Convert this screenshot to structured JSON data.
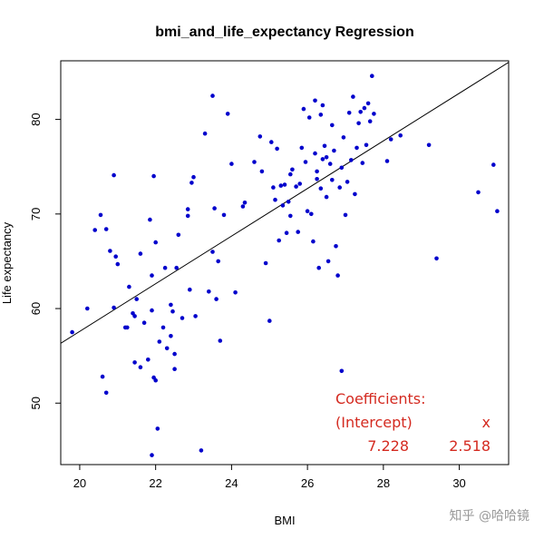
{
  "chart_data": {
    "type": "scatter",
    "title": "bmi_and_life_expectancy Regression",
    "xlabel": "BMI",
    "ylabel": "Life expectancy",
    "xlim": [
      19.5,
      31.3
    ],
    "ylim": [
      43.5,
      86.2
    ],
    "xticks": [
      20,
      22,
      24,
      26,
      28,
      30
    ],
    "yticks": [
      50,
      60,
      70,
      80
    ],
    "grid": false,
    "point_color": "#0000cc",
    "line_color": "#000000",
    "regression": {
      "intercept": 7.228,
      "slope": 2.518
    },
    "points": [
      [
        19.8,
        57.5
      ],
      [
        20.2,
        60.0
      ],
      [
        20.4,
        68.3
      ],
      [
        20.55,
        69.9
      ],
      [
        20.6,
        52.8
      ],
      [
        20.7,
        51.1
      ],
      [
        20.7,
        68.4
      ],
      [
        20.8,
        66.1
      ],
      [
        20.9,
        74.1
      ],
      [
        20.9,
        60.1
      ],
      [
        20.95,
        65.5
      ],
      [
        21.0,
        64.7
      ],
      [
        21.2,
        58.0
      ],
      [
        21.25,
        58.0
      ],
      [
        21.3,
        62.3
      ],
      [
        21.4,
        59.5
      ],
      [
        21.45,
        59.2
      ],
      [
        21.45,
        54.3
      ],
      [
        21.5,
        61.0
      ],
      [
        21.6,
        65.8
      ],
      [
        21.6,
        53.8
      ],
      [
        21.7,
        58.5
      ],
      [
        21.8,
        54.6
      ],
      [
        21.85,
        69.4
      ],
      [
        21.9,
        63.5
      ],
      [
        21.9,
        59.8
      ],
      [
        21.95,
        74.0
      ],
      [
        21.95,
        52.7
      ],
      [
        21.9,
        44.5
      ],
      [
        22.0,
        52.4
      ],
      [
        22.05,
        47.3
      ],
      [
        22.1,
        56.5
      ],
      [
        22.0,
        67.0
      ],
      [
        22.2,
        58.0
      ],
      [
        22.25,
        64.3
      ],
      [
        22.3,
        55.8
      ],
      [
        22.4,
        57.1
      ],
      [
        22.4,
        60.4
      ],
      [
        22.45,
        59.7
      ],
      [
        22.5,
        53.6
      ],
      [
        22.5,
        55.2
      ],
      [
        22.55,
        64.3
      ],
      [
        22.6,
        67.8
      ],
      [
        22.7,
        59.0
      ],
      [
        22.85,
        70.5
      ],
      [
        22.85,
        69.8
      ],
      [
        22.9,
        62.0
      ],
      [
        22.95,
        73.3
      ],
      [
        23.0,
        73.9
      ],
      [
        23.05,
        59.2
      ],
      [
        23.2,
        45.0
      ],
      [
        23.3,
        78.5
      ],
      [
        23.4,
        61.8
      ],
      [
        23.5,
        82.5
      ],
      [
        23.5,
        66.0
      ],
      [
        23.55,
        70.6
      ],
      [
        23.6,
        61.0
      ],
      [
        23.65,
        65.0
      ],
      [
        23.7,
        56.6
      ],
      [
        23.8,
        69.9
      ],
      [
        23.9,
        80.6
      ],
      [
        24.0,
        75.3
      ],
      [
        24.1,
        61.7
      ],
      [
        24.3,
        70.8
      ],
      [
        24.35,
        71.2
      ],
      [
        24.6,
        75.5
      ],
      [
        24.75,
        78.2
      ],
      [
        24.8,
        74.5
      ],
      [
        24.9,
        64.8
      ],
      [
        25.0,
        58.7
      ],
      [
        25.05,
        77.6
      ],
      [
        25.1,
        72.8
      ],
      [
        25.15,
        71.5
      ],
      [
        25.2,
        76.9
      ],
      [
        25.25,
        67.2
      ],
      [
        25.3,
        73.0
      ],
      [
        25.35,
        70.9
      ],
      [
        25.4,
        73.1
      ],
      [
        25.45,
        68.0
      ],
      [
        25.5,
        71.3
      ],
      [
        25.55,
        74.2
      ],
      [
        25.55,
        69.8
      ],
      [
        25.6,
        74.7
      ],
      [
        25.7,
        72.9
      ],
      [
        25.75,
        68.1
      ],
      [
        25.8,
        73.2
      ],
      [
        25.85,
        77.0
      ],
      [
        25.9,
        81.1
      ],
      [
        25.95,
        75.5
      ],
      [
        26.0,
        70.3
      ],
      [
        26.05,
        80.2
      ],
      [
        26.1,
        70.0
      ],
      [
        26.15,
        67.1
      ],
      [
        26.2,
        76.4
      ],
      [
        26.2,
        82.0
      ],
      [
        26.25,
        74.5
      ],
      [
        26.25,
        73.7
      ],
      [
        26.3,
        64.3
      ],
      [
        26.35,
        80.5
      ],
      [
        26.35,
        72.7
      ],
      [
        26.4,
        75.8
      ],
      [
        26.4,
        81.5
      ],
      [
        26.45,
        77.2
      ],
      [
        26.5,
        76.0
      ],
      [
        26.5,
        71.8
      ],
      [
        26.55,
        65.0
      ],
      [
        26.6,
        75.3
      ],
      [
        26.65,
        79.4
      ],
      [
        26.65,
        73.6
      ],
      [
        26.7,
        76.7
      ],
      [
        26.75,
        66.6
      ],
      [
        26.8,
        63.5
      ],
      [
        26.85,
        72.8
      ],
      [
        26.9,
        74.9
      ],
      [
        26.9,
        53.4
      ],
      [
        26.95,
        78.1
      ],
      [
        27.0,
        69.9
      ],
      [
        27.05,
        73.4
      ],
      [
        27.1,
        80.7
      ],
      [
        27.15,
        75.7
      ],
      [
        27.2,
        82.4
      ],
      [
        27.25,
        72.1
      ],
      [
        27.3,
        77.0
      ],
      [
        27.35,
        79.6
      ],
      [
        27.4,
        80.8
      ],
      [
        27.45,
        75.4
      ],
      [
        27.5,
        81.2
      ],
      [
        27.55,
        77.3
      ],
      [
        27.6,
        81.7
      ],
      [
        27.65,
        79.8
      ],
      [
        27.7,
        84.6
      ],
      [
        27.75,
        80.6
      ],
      [
        28.1,
        75.6
      ],
      [
        28.2,
        77.9
      ],
      [
        28.45,
        78.3
      ],
      [
        29.2,
        77.3
      ],
      [
        29.4,
        65.3
      ],
      [
        30.5,
        72.3
      ],
      [
        30.9,
        75.2
      ],
      [
        31.0,
        70.3
      ]
    ],
    "annotation": {
      "header": "Coefficients:",
      "col1_label": "(Intercept)",
      "col2_label": "x",
      "col1_value": "7.228",
      "col2_value": "2.518"
    }
  },
  "watermark": "知乎 @哈哈镜"
}
